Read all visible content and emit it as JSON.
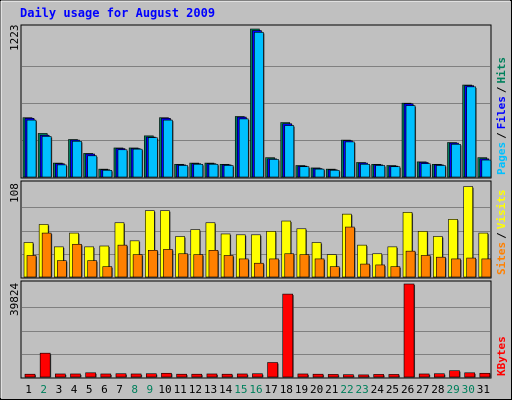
{
  "chart_data": [
    {
      "type": "bar",
      "title": "Daily usage for August 2009",
      "panel": "pages-files-hits",
      "categories": [
        "1",
        "2",
        "3",
        "4",
        "5",
        "6",
        "7",
        "8",
        "9",
        "10",
        "11",
        "12",
        "13",
        "14",
        "15",
        "16",
        "17",
        "18",
        "19",
        "20",
        "21",
        "22",
        "23",
        "24",
        "25",
        "26",
        "27",
        "28",
        "29",
        "30",
        "31"
      ],
      "weekend_days": [
        "2",
        "8",
        "9",
        "15",
        "16",
        "22",
        "23",
        "29",
        "30"
      ],
      "ymax_label": "1223",
      "ylim": [
        0,
        1223
      ],
      "series": [
        {
          "name": "Hits",
          "color": "#00805c",
          "values": [
            490,
            360,
            115,
            310,
            195,
            65,
            240,
            240,
            340,
            490,
            105,
            115,
            115,
            105,
            500,
            1223,
            160,
            450,
            95,
            75,
            65,
            305,
            120,
            105,
            95,
            610,
            125,
            105,
            285,
            760,
            160
          ]
        },
        {
          "name": "Files",
          "color": "#0000ff",
          "values": [
            485,
            345,
            110,
            305,
            190,
            60,
            235,
            235,
            330,
            485,
            100,
            110,
            110,
            100,
            495,
            1210,
            150,
            440,
            90,
            70,
            60,
            300,
            115,
            100,
            90,
            605,
            120,
            100,
            280,
            755,
            150
          ]
        },
        {
          "name": "Pages",
          "color": "#00c0ff",
          "values": [
            470,
            335,
            100,
            295,
            175,
            55,
            225,
            230,
            325,
            470,
            95,
            105,
            105,
            95,
            480,
            1195,
            145,
            425,
            85,
            65,
            55,
            290,
            105,
            95,
            85,
            590,
            110,
            95,
            270,
            745,
            140
          ]
        }
      ]
    },
    {
      "type": "bar",
      "panel": "visits-sites",
      "ymax_label": "108",
      "ylim": [
        0,
        108
      ],
      "series": [
        {
          "name": "Visits",
          "color": "#ffff00",
          "values": [
            40,
            61,
            35,
            51,
            35,
            36,
            63,
            42,
            77,
            77,
            47,
            55,
            63,
            50,
            49,
            49,
            53,
            65,
            56,
            40,
            26,
            73,
            37,
            27,
            35,
            75,
            53,
            47,
            67,
            105,
            51
          ]
        },
        {
          "name": "Sites",
          "color": "#ff8000",
          "values": [
            25,
            51,
            19,
            38,
            19,
            12,
            37,
            26,
            31,
            32,
            27,
            26,
            31,
            25,
            21,
            16,
            21,
            27,
            26,
            21,
            12,
            58,
            15,
            14,
            12,
            30,
            25,
            23,
            21,
            22,
            21
          ]
        }
      ]
    },
    {
      "type": "bar",
      "panel": "kbytes",
      "ymax_label": "39824",
      "ylim": [
        0,
        39824
      ],
      "series": [
        {
          "name": "KBytes",
          "color": "#ff0000",
          "values": [
            1200,
            10200,
            1300,
            1300,
            1800,
            1300,
            1400,
            1300,
            1400,
            1600,
            1200,
            1200,
            1300,
            1200,
            1300,
            1400,
            6200,
            35500,
            1300,
            1200,
            1100,
            1000,
            900,
            1100,
            1100,
            39824,
            1300,
            1400,
            2700,
            1800,
            1600
          ]
        }
      ]
    }
  ],
  "legend": {
    "pages": "Pages",
    "files": "Files",
    "hits": "Hits",
    "sites": "Sites",
    "visits": "Visits",
    "kbytes": "KBytes",
    "slash": "/"
  },
  "colors": {
    "background": "#c0c0c0",
    "title": "#0000ff",
    "weekday_label": "#000000",
    "weekend_label": "#00805c",
    "pages": "#00c0ff",
    "files": "#0000ff",
    "hits": "#00805c",
    "visits": "#ffff00",
    "sites": "#ff8000",
    "kbytes": "#ff0000"
  }
}
